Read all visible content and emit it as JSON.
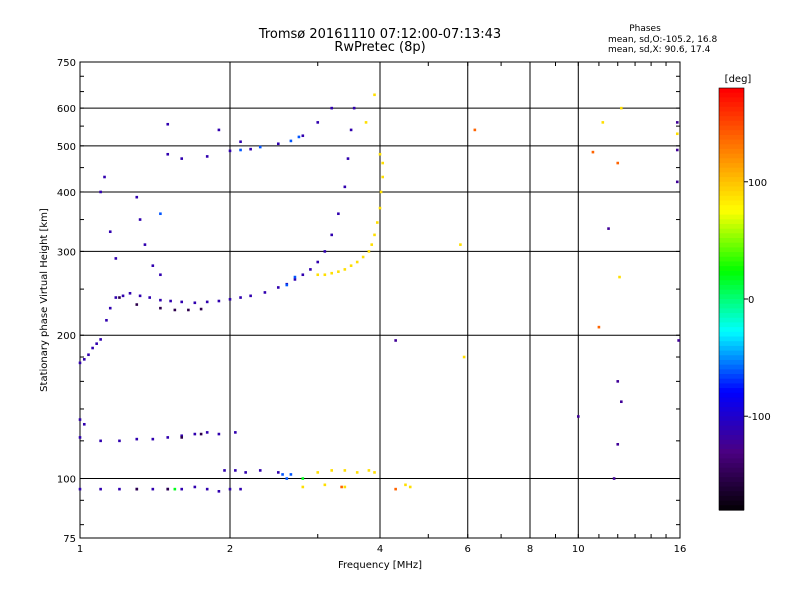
{
  "chart_data": {
    "type": "scatter",
    "title": "Tromsø 20161110 07:12:00-07:13:43",
    "subtitle": "RwPretec (8p)",
    "xlabel": "Frequency [MHz]",
    "ylabel": "Stationary phase Virtual Height [km]",
    "x_scale": "log",
    "y_scale": "log",
    "xlim": [
      1,
      16
    ],
    "ylim": [
      75,
      750
    ],
    "x_ticks": [
      1,
      2,
      4,
      6,
      8,
      10,
      16
    ],
    "y_ticks": [
      75,
      100,
      200,
      300,
      400,
      500,
      600,
      750
    ],
    "grid": true,
    "phase_box": {
      "heading": "Phases",
      "line1": "mean, sd,O:-105.2, 16.8",
      "line2": "mean, sd,X:  90.6, 17.4"
    },
    "colorbar": {
      "label": "[deg]",
      "range": [
        -180,
        180
      ],
      "ticks": [
        100,
        0,
        -100
      ],
      "colors": [
        "#000000",
        "#4b0082",
        "#0000ff",
        "#00ffff",
        "#00ff00",
        "#ffff00",
        "#ff8000",
        "#ff0000"
      ]
    },
    "series": [
      {
        "phase": -110,
        "points": [
          [
            1.0,
            175
          ],
          [
            1.02,
            178
          ],
          [
            1.04,
            182
          ],
          [
            1.06,
            188
          ],
          [
            1.08,
            192
          ],
          [
            1.1,
            196
          ],
          [
            1.13,
            215
          ],
          [
            1.15,
            228
          ],
          [
            1.18,
            240
          ],
          [
            1.22,
            242
          ],
          [
            1.26,
            245
          ],
          [
            1.32,
            242
          ],
          [
            1.38,
            240
          ],
          [
            1.45,
            237
          ],
          [
            1.52,
            236
          ],
          [
            1.6,
            235
          ],
          [
            1.7,
            234
          ],
          [
            1.8,
            235
          ],
          [
            1.9,
            236
          ],
          [
            2.0,
            238
          ],
          [
            2.1,
            240
          ],
          [
            2.2,
            242
          ],
          [
            2.35,
            246
          ],
          [
            2.5,
            252
          ],
          [
            2.6,
            256
          ],
          [
            2.7,
            262
          ],
          [
            2.8,
            268
          ],
          [
            2.9,
            275
          ],
          [
            3.0,
            285
          ],
          [
            3.1,
            300
          ],
          [
            3.2,
            325
          ],
          [
            3.3,
            360
          ],
          [
            3.4,
            410
          ],
          [
            3.45,
            470
          ],
          [
            3.5,
            540
          ],
          [
            3.55,
            600
          ],
          [
            1.1,
            400
          ],
          [
            1.12,
            430
          ],
          [
            1.15,
            330
          ],
          [
            1.18,
            290
          ],
          [
            1.3,
            390
          ],
          [
            1.32,
            350
          ],
          [
            1.35,
            310
          ],
          [
            1.4,
            280
          ],
          [
            1.45,
            268
          ],
          [
            1.5,
            480
          ],
          [
            1.6,
            470
          ],
          [
            1.8,
            475
          ],
          [
            2.0,
            488
          ],
          [
            2.2,
            492
          ],
          [
            2.5,
            505
          ],
          [
            2.8,
            525
          ],
          [
            3.0,
            560
          ],
          [
            3.2,
            600
          ],
          [
            1.5,
            555
          ],
          [
            1.9,
            540
          ],
          [
            2.1,
            510
          ],
          [
            1.0,
            122
          ],
          [
            1.1,
            120
          ],
          [
            1.2,
            120
          ],
          [
            1.3,
            121
          ],
          [
            1.4,
            121
          ],
          [
            1.5,
            122
          ],
          [
            1.6,
            123
          ],
          [
            1.7,
            124
          ],
          [
            1.8,
            125
          ],
          [
            1.9,
            124
          ],
          [
            2.05,
            125
          ],
          [
            1.0,
            95
          ],
          [
            1.1,
            95
          ],
          [
            1.2,
            95
          ],
          [
            1.3,
            95
          ],
          [
            1.4,
            95
          ],
          [
            1.5,
            95
          ],
          [
            1.6,
            95
          ],
          [
            1.7,
            96
          ],
          [
            1.8,
            95
          ],
          [
            1.9,
            94
          ],
          [
            2.0,
            95
          ],
          [
            2.1,
            95
          ],
          [
            1.95,
            104
          ],
          [
            2.05,
            104
          ],
          [
            2.15,
            103
          ],
          [
            2.3,
            104
          ],
          [
            2.5,
            103
          ],
          [
            1.0,
            133
          ],
          [
            1.02,
            130
          ]
        ]
      },
      {
        "phase": -150,
        "points": [
          [
            1.2,
            240
          ],
          [
            1.3,
            232
          ],
          [
            1.45,
            228
          ],
          [
            1.55,
            226
          ],
          [
            1.65,
            226
          ],
          [
            1.75,
            227
          ],
          [
            1.6,
            122
          ],
          [
            1.75,
            124
          ],
          [
            1.3,
            95
          ],
          [
            1.5,
            95
          ]
        ]
      },
      {
        "phase": -60,
        "points": [
          [
            2.1,
            490
          ],
          [
            2.3,
            497
          ],
          [
            2.6,
            255
          ],
          [
            2.7,
            265
          ],
          [
            2.75,
            522
          ],
          [
            2.65,
            512
          ],
          [
            2.55,
            102
          ],
          [
            2.65,
            102
          ],
          [
            1.45,
            360
          ],
          [
            2.6,
            100
          ]
        ]
      },
      {
        "phase": 20,
        "points": [
          [
            1.55,
            95
          ],
          [
            2.8,
            100
          ]
        ]
      },
      {
        "phase": 90,
        "points": [
          [
            3.0,
            268
          ],
          [
            3.1,
            268
          ],
          [
            3.2,
            270
          ],
          [
            3.3,
            272
          ],
          [
            3.4,
            275
          ],
          [
            3.5,
            280
          ],
          [
            3.6,
            285
          ],
          [
            3.7,
            292
          ],
          [
            3.8,
            300
          ],
          [
            3.85,
            310
          ],
          [
            3.9,
            325
          ],
          [
            3.95,
            345
          ],
          [
            4.0,
            370
          ],
          [
            4.02,
            400
          ],
          [
            4.05,
            430
          ],
          [
            4.05,
            460
          ],
          [
            4.0,
            480
          ],
          [
            3.75,
            560
          ],
          [
            3.9,
            640
          ],
          [
            3.0,
            103
          ],
          [
            3.2,
            104
          ],
          [
            3.4,
            104
          ],
          [
            3.6,
            103
          ],
          [
            3.8,
            104
          ],
          [
            3.9,
            103
          ],
          [
            2.8,
            96
          ],
          [
            3.1,
            97
          ],
          [
            3.4,
            96
          ],
          [
            4.5,
            97
          ],
          [
            4.6,
            96
          ],
          [
            5.8,
            310
          ],
          [
            5.9,
            180
          ],
          [
            11.2,
            560
          ],
          [
            12.1,
            265
          ],
          [
            12.2,
            600
          ],
          [
            15.8,
            530
          ]
        ]
      },
      {
        "phase": 140,
        "points": [
          [
            3.35,
            96
          ],
          [
            4.3,
            95
          ],
          [
            12.0,
            460
          ],
          [
            11.0,
            208
          ],
          [
            6.2,
            540
          ],
          [
            10.7,
            485
          ]
        ]
      },
      {
        "phase": -120,
        "points": [
          [
            11.5,
            335
          ],
          [
            12.0,
            160
          ],
          [
            12.2,
            145
          ],
          [
            12.0,
            118
          ],
          [
            15.8,
            560
          ],
          [
            15.8,
            490
          ],
          [
            15.8,
            420
          ],
          [
            15.9,
            195
          ],
          [
            10.0,
            135
          ],
          [
            4.3,
            195
          ],
          [
            11.8,
            100
          ]
        ]
      }
    ]
  }
}
